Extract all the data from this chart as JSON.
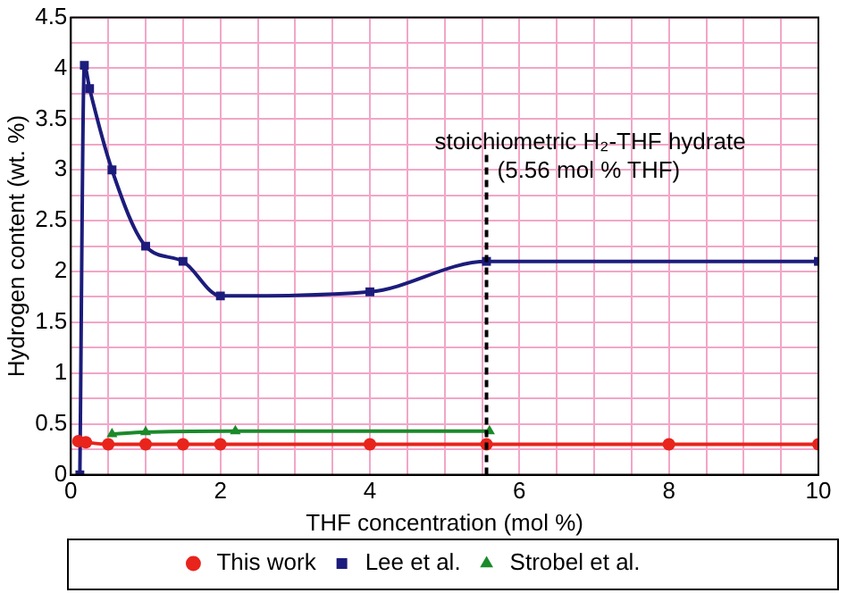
{
  "chart_data": {
    "type": "line",
    "xlabel": "THF concentration (mol %)",
    "ylabel": "Hydrogen content (wt. %)",
    "xlim": [
      0,
      10
    ],
    "ylim": [
      0,
      4.5
    ],
    "xticks": [
      0,
      {
        "value": 0.5,
        "label": null
      },
      {
        "value": 1,
        "label": null
      },
      {
        "value": 1.5,
        "label": null
      },
      2,
      {
        "value": 2.5,
        "label": null
      },
      {
        "value": 3,
        "label": null
      },
      {
        "value": 3.5,
        "label": null
      },
      4,
      {
        "value": 4.5,
        "label": null
      },
      {
        "value": 5,
        "label": null
      },
      {
        "value": 5.5,
        "label": null
      },
      6,
      {
        "value": 6.5,
        "label": null
      },
      {
        "value": 7,
        "label": null
      },
      {
        "value": 7.5,
        "label": null
      },
      8,
      {
        "value": 8.5,
        "label": null
      },
      {
        "value": 9,
        "label": null
      },
      {
        "value": 9.5,
        "label": null
      },
      10
    ],
    "yticks": [
      0,
      {
        "value": 0.25,
        "label": null
      },
      0.5,
      {
        "value": 0.75,
        "label": null
      },
      1,
      {
        "value": 1.25,
        "label": null
      },
      1.5,
      {
        "value": 1.75,
        "label": null
      },
      2,
      {
        "value": 2.25,
        "label": null
      },
      2.5,
      {
        "value": 2.75,
        "label": null
      },
      3,
      {
        "value": 3.25,
        "label": null
      },
      3.5,
      {
        "value": 3.75,
        "label": null
      },
      4,
      {
        "value": 4.25,
        "label": null
      },
      4.5
    ],
    "grid": true,
    "legend": "bottom",
    "series": [
      {
        "name": "This work",
        "color": "#e8241c",
        "marker": "circle",
        "x": [
          0.1,
          0.2,
          0.5,
          1,
          1.5,
          2,
          4,
          5.56,
          8,
          10
        ],
        "values": [
          0.33,
          0.32,
          0.3,
          0.3,
          0.3,
          0.3,
          0.3,
          0.3,
          0.3,
          0.3
        ]
      },
      {
        "name": "Lee et al.",
        "color": "#1c1c7c",
        "marker": "square",
        "x": [
          0.12,
          0.18,
          0.25,
          0.55,
          1,
          1.5,
          2,
          4,
          5.56,
          10
        ],
        "values": [
          0,
          4.03,
          3.8,
          3.0,
          2.25,
          2.1,
          1.76,
          1.8,
          2.1,
          2.1
        ]
      },
      {
        "name": "Strobel et al.",
        "color": "#1a8a2a",
        "marker": "triangle",
        "x": [
          0.55,
          1,
          2.2,
          5.6
        ],
        "values": [
          0.4,
          0.42,
          0.43,
          0.43
        ]
      }
    ],
    "ref_lines": [
      {
        "axis": "x",
        "value": 5.56,
        "label": "stoichiometric H₂-THF hydrate\n(5.56 mol % THF)",
        "color": "#000000",
        "line_style": "dashed"
      }
    ]
  }
}
